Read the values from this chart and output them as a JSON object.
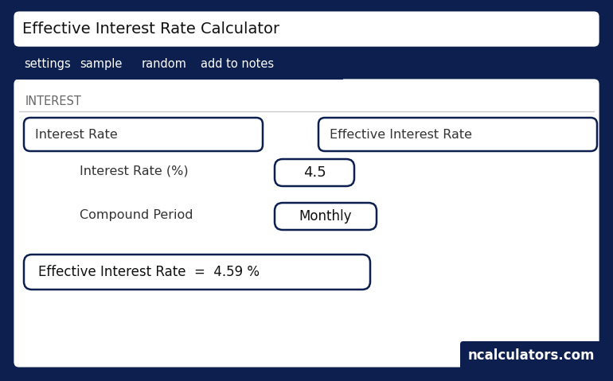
{
  "title": "Effective Interest Rate Calculator",
  "nav_items": [
    "settings",
    "sample",
    "random",
    "add to notes"
  ],
  "section_label": "INTEREST",
  "tab_bg": "#0d1f4e",
  "tab_text": "#ffffff",
  "main_bg": "#ffffff",
  "outer_bg": "#0d1f4e",
  "border_color": "#0d1f4e",
  "box1_label": "Interest Rate",
  "box2_label": "Effective Interest Rate",
  "field1_label": "Interest Rate (%)",
  "field1_value": "4.5",
  "field2_label": "Compound Period",
  "field2_value": "Monthly",
  "result_text": "Effective Interest Rate  =  4.59 %",
  "watermark": "ncalculators.com",
  "watermark_bg": "#0d1f4e",
  "watermark_text": "#ffffff"
}
